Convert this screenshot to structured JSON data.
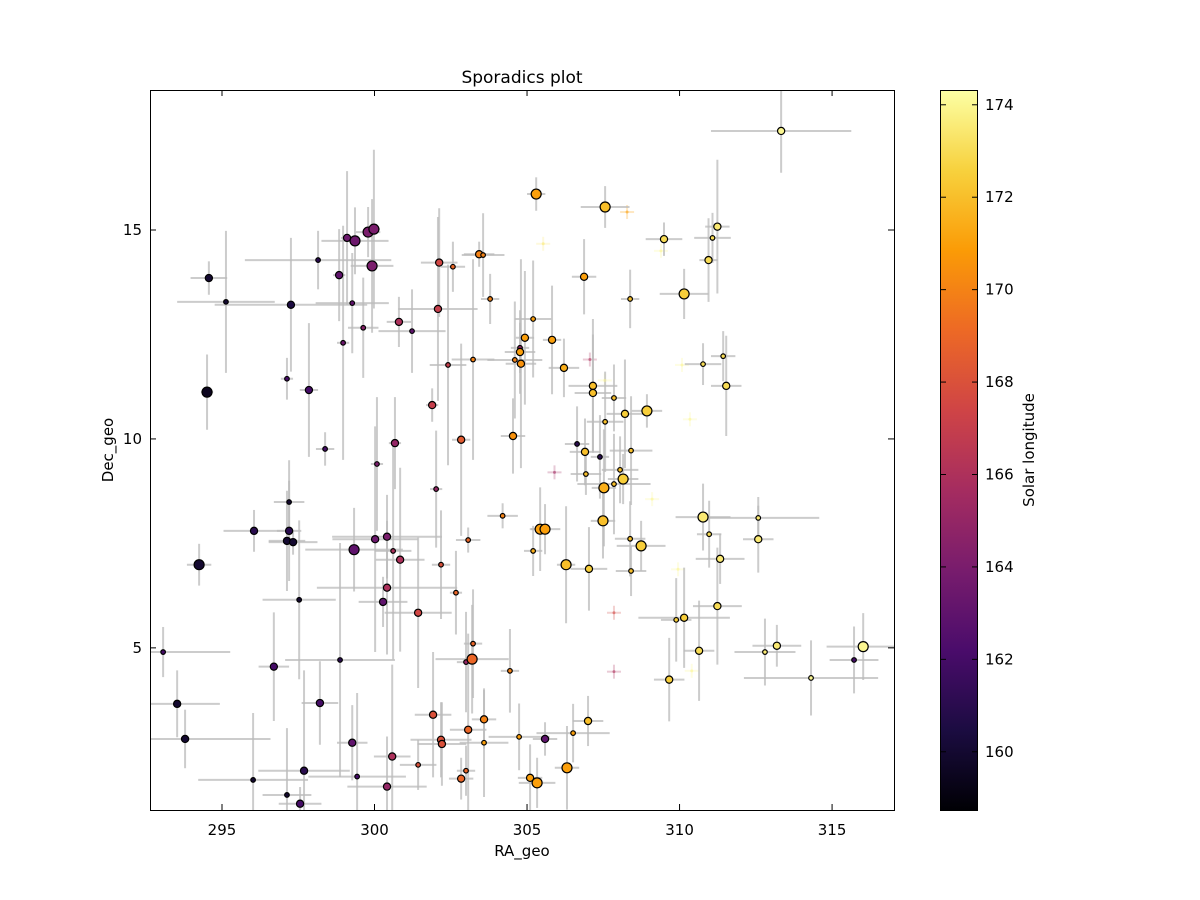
{
  "chart_data": {
    "type": "scatter",
    "title": "Sporadics plot",
    "xlabel": "RA_geo",
    "ylabel": "Dec_geo",
    "xlim": [
      292.64,
      317.03
    ],
    "ylim": [
      1.12,
      18.35
    ],
    "xticks": [
      295,
      300,
      305,
      310,
      315
    ],
    "yticks": [
      5,
      10,
      15
    ],
    "grid": false,
    "colorbar": {
      "label": "Solar longitude",
      "colormap": "inferno",
      "range": [
        158.74,
        174.32
      ],
      "ticks": [
        160,
        162,
        164,
        166,
        168,
        170,
        172,
        174
      ]
    },
    "errorbar_color": "#bbbbbb",
    "point_fields": [
      "ra",
      "dec",
      "solar_longitude",
      "size",
      "ra_err",
      "dec_err"
    ],
    "points": [
      [
        294.57,
        13.85,
        160,
        2,
        0.6,
        0.4
      ],
      [
        295.13,
        13.28,
        160,
        1,
        1.6,
        1.7
      ],
      [
        297.26,
        13.21,
        160.5,
        2,
        2.5,
        1.6
      ],
      [
        294.51,
        11.12,
        159.5,
        3,
        0.2,
        0.9
      ],
      [
        298.15,
        14.28,
        161,
        1,
        2.4,
        0.7
      ],
      [
        299.1,
        14.81,
        163.5,
        2,
        0.2,
        1.6
      ],
      [
        299.36,
        14.74,
        163.5,
        3,
        1.1,
        0.8
      ],
      [
        299.79,
        14.95,
        164,
        3,
        0.4,
        0.6
      ],
      [
        299.98,
        15.02,
        164,
        3,
        0.2,
        1.9
      ],
      [
        299.92,
        14.14,
        164,
        3,
        0.7,
        1.6
      ],
      [
        298.84,
        13.92,
        163,
        2,
        0.2,
        1.1
      ],
      [
        299.27,
        13.25,
        163,
        1,
        1.2,
        1.2
      ],
      [
        299.63,
        12.66,
        164.5,
        1,
        0.5,
        1.2
      ],
      [
        298.97,
        12.3,
        163.5,
        1,
        0.2,
        2.8
      ],
      [
        300.8,
        12.8,
        166,
        2,
        0.4,
        0.6
      ],
      [
        301.23,
        12.58,
        163,
        1,
        1.1,
        1.0
      ],
      [
        302.08,
        13.11,
        167,
        2,
        1.3,
        2.2
      ],
      [
        302.12,
        14.22,
        167.5,
        2,
        0.6,
        1.3
      ],
      [
        302.57,
        14.12,
        169,
        1,
        0.4,
        0.6
      ],
      [
        302.41,
        11.77,
        167,
        1,
        0.6,
        2.4
      ],
      [
        301.89,
        10.81,
        167,
        2,
        0.2,
        0.4
      ],
      [
        302.84,
        9.98,
        168.5,
        2,
        0.3,
        2.3
      ],
      [
        297.13,
        11.44,
        162,
        1,
        0.2,
        0.5
      ],
      [
        297.85,
        11.17,
        162,
        2,
        0.3,
        1.6
      ],
      [
        298.38,
        9.76,
        162,
        1,
        0.3,
        0.4
      ],
      [
        300.08,
        9.4,
        164,
        1,
        0.2,
        1.6
      ],
      [
        300.67,
        9.9,
        165,
        2,
        0.2,
        1.1
      ],
      [
        302.02,
        8.8,
        165,
        1,
        0.2,
        1.4
      ],
      [
        297.2,
        8.49,
        160,
        1,
        0.5,
        1.0
      ],
      [
        296.05,
        7.8,
        161,
        2,
        1.0,
        0.5
      ],
      [
        297.2,
        7.8,
        161,
        2,
        0.4,
        1.2
      ],
      [
        297.13,
        7.56,
        160,
        2,
        0.6,
        1.2
      ],
      [
        297.33,
        7.53,
        160,
        2,
        0.8,
        0.3
      ],
      [
        294.25,
        6.99,
        160,
        3,
        0.4,
        0.5
      ],
      [
        299.33,
        7.35,
        163,
        3,
        1.6,
        1.0
      ],
      [
        300.02,
        7.6,
        163.5,
        2,
        1.4,
        2.7
      ],
      [
        300.41,
        7.66,
        164,
        2,
        1.8,
        1.0
      ],
      [
        300.61,
        7.32,
        166,
        1,
        0.6,
        2.6
      ],
      [
        300.84,
        7.11,
        166,
        2,
        0.8,
        2.2
      ],
      [
        302.18,
        6.99,
        168,
        1,
        0.3,
        1.3
      ],
      [
        303.07,
        7.58,
        169,
        1,
        0.4,
        0.3
      ],
      [
        302.67,
        6.32,
        169,
        1,
        0.2,
        1.0
      ],
      [
        300.41,
        6.44,
        166,
        2,
        2.3,
        1.6
      ],
      [
        300.28,
        6.1,
        163,
        2,
        0.8,
        0.6
      ],
      [
        301.43,
        5.84,
        167.5,
        2,
        1.1,
        1.8
      ],
      [
        297.53,
        6.15,
        160,
        1,
        1.2,
        1.9
      ],
      [
        293.07,
        4.9,
        162,
        1,
        2.2,
        0.6
      ],
      [
        296.7,
        4.55,
        162,
        2,
        0.5,
        1.3
      ],
      [
        298.87,
        4.71,
        161,
        1,
        1.8,
        2.8
      ],
      [
        298.21,
        3.68,
        162,
        2,
        0.6,
        1.0
      ],
      [
        293.53,
        3.66,
        160,
        2,
        1.4,
        0.8
      ],
      [
        293.79,
        2.82,
        160,
        2,
        2.8,
        0.7
      ],
      [
        296.02,
        1.84,
        160,
        1,
        1.8,
        1.6
      ],
      [
        297.13,
        1.48,
        160,
        1,
        0.8,
        1.6
      ],
      [
        297.56,
        1.27,
        162,
        2,
        0.7,
        0.4
      ],
      [
        297.69,
        2.06,
        161,
        2,
        1.5,
        2.4
      ],
      [
        299.27,
        2.73,
        163,
        2,
        0.5,
        0.9
      ],
      [
        299.43,
        1.92,
        162,
        1,
        1.6,
        2.0
      ],
      [
        300.41,
        1.68,
        165,
        2,
        1.3,
        1.2
      ],
      [
        300.58,
        2.4,
        166,
        2,
        0.6,
        2.2
      ],
      [
        301.92,
        3.4,
        168,
        2,
        0.6,
        1.5
      ],
      [
        301.43,
        2.2,
        168,
        1,
        0.6,
        0.6
      ],
      [
        302.18,
        2.8,
        168,
        2,
        1.0,
        0.9
      ],
      [
        302.21,
        2.7,
        168,
        2,
        0.8,
        1.0
      ],
      [
        302.84,
        1.87,
        169,
        2,
        0.4,
        0.5
      ],
      [
        303.0,
        2.06,
        169,
        1,
        0.3,
        0.6
      ],
      [
        303.07,
        3.04,
        169,
        2,
        0.6,
        2.3
      ],
      [
        303.23,
        5.1,
        169,
        1,
        0.3,
        1.3
      ],
      [
        303.0,
        4.66,
        165,
        1,
        0.3,
        1.2
      ],
      [
        303.2,
        4.73,
        169,
        3,
        1.2,
        1.3
      ],
      [
        303.59,
        3.29,
        170,
        2,
        0.4,
        0.7
      ],
      [
        303.59,
        2.73,
        171,
        1,
        0.8,
        1.3
      ],
      [
        304.44,
        4.45,
        170,
        1,
        0.3,
        1.0
      ],
      [
        304.74,
        2.87,
        171,
        1,
        1.0,
        0.8
      ],
      [
        305.1,
        1.89,
        171,
        2,
        0.4,
        0.8
      ],
      [
        305.33,
        1.77,
        171,
        3,
        0.6,
        0.6
      ],
      [
        305.59,
        2.82,
        163,
        2,
        0.4,
        0.4
      ],
      [
        306.31,
        2.13,
        171,
        3,
        0.4,
        1.0
      ],
      [
        306.51,
        2.96,
        171,
        1,
        1.2,
        0.7
      ],
      [
        307.0,
        3.25,
        172,
        2,
        0.5,
        0.6
      ],
      [
        303.43,
        14.42,
        170,
        2,
        0.5,
        0.3
      ],
      [
        303.56,
        14.4,
        170,
        1,
        0.7,
        1.0
      ],
      [
        303.79,
        13.35,
        170,
        1,
        0.3,
        0.6
      ],
      [
        303.23,
        11.9,
        170,
        1,
        0.7,
        2.4
      ],
      [
        304.2,
        8.16,
        170,
        1,
        0.5,
        0.3
      ],
      [
        304.54,
        10.07,
        170.5,
        2,
        0.4,
        0.9
      ],
      [
        304.6,
        11.89,
        170,
        1,
        0.9,
        1.4
      ],
      [
        304.77,
        12.18,
        165,
        1,
        0.3,
        0.6
      ],
      [
        304.77,
        12.08,
        171,
        2,
        0.5,
        1.0
      ],
      [
        304.8,
        11.8,
        170.5,
        2,
        0.5,
        2.5
      ],
      [
        304.93,
        12.42,
        171,
        2,
        0.3,
        1.6
      ],
      [
        305.2,
        12.87,
        171,
        1,
        0.6,
        1.4
      ],
      [
        305.3,
        15.86,
        171,
        3,
        0.3,
        0.4
      ],
      [
        305.82,
        12.37,
        171,
        2,
        0.3,
        1.3
      ],
      [
        306.21,
        11.7,
        171.5,
        2,
        0.5,
        0.7
      ],
      [
        305.2,
        7.32,
        171.5,
        1,
        0.3,
        0.6
      ],
      [
        305.43,
        7.84,
        171,
        3,
        0.3,
        1.0
      ],
      [
        305.59,
        7.84,
        171,
        3,
        0.5,
        0.6
      ],
      [
        306.28,
        6.99,
        172,
        3,
        0.3,
        1.4
      ],
      [
        306.87,
        13.88,
        171,
        2,
        0.4,
        0.9
      ],
      [
        307.56,
        15.55,
        172,
        3,
        0.8,
        0.5
      ],
      [
        308.38,
        13.35,
        172,
        1,
        0.3,
        0.7
      ],
      [
        307.16,
        11.27,
        172,
        2,
        0.8,
        1.6
      ],
      [
        307.16,
        11.1,
        172,
        2,
        0.6,
        1.4
      ],
      [
        307.85,
        10.98,
        172,
        1,
        0.4,
        0.8
      ],
      [
        308.21,
        10.6,
        172.5,
        2,
        0.6,
        1.3
      ],
      [
        308.93,
        10.67,
        172.5,
        3,
        0.5,
        0.4
      ],
      [
        307.56,
        10.41,
        172,
        1,
        0.6,
        1.2
      ],
      [
        306.64,
        9.88,
        161,
        1,
        0.4,
        0.9
      ],
      [
        306.9,
        9.69,
        172,
        2,
        0.5,
        0.8
      ],
      [
        307.39,
        9.57,
        161,
        1,
        0.3,
        1.0
      ],
      [
        308.41,
        9.72,
        172,
        1,
        0.7,
        1.3
      ],
      [
        306.93,
        9.16,
        172,
        1,
        0.5,
        0.5
      ],
      [
        308.05,
        9.26,
        172,
        1,
        0.6,
        0.8
      ],
      [
        308.15,
        9.04,
        172.5,
        3,
        0.5,
        0.6
      ],
      [
        307.85,
        8.92,
        172,
        1,
        1.2,
        1.2
      ],
      [
        307.52,
        8.83,
        171.5,
        3,
        0.4,
        1.4
      ],
      [
        307.49,
        8.04,
        172,
        3,
        0.4,
        0.9
      ],
      [
        308.38,
        7.61,
        172,
        1,
        0.5,
        0.9
      ],
      [
        308.74,
        7.44,
        172.5,
        3,
        0.8,
        0.6
      ],
      [
        308.41,
        6.84,
        172,
        1,
        0.5,
        0.6
      ],
      [
        307.03,
        6.89,
        172.5,
        2,
        0.6,
        1.0
      ],
      [
        309.49,
        14.78,
        173,
        2,
        0.6,
        0.4
      ],
      [
        310.15,
        13.47,
        172.5,
        3,
        0.8,
        0.6
      ],
      [
        310.95,
        14.28,
        173,
        2,
        0.3,
        1.0
      ],
      [
        311.08,
        14.81,
        173,
        1,
        0.6,
        0.6
      ],
      [
        311.24,
        15.08,
        173.5,
        2,
        0.4,
        1.6
      ],
      [
        310.77,
        11.79,
        173,
        1,
        0.6,
        0.5
      ],
      [
        311.43,
        11.98,
        173,
        1,
        0.4,
        0.6
      ],
      [
        311.53,
        11.27,
        173,
        2,
        0.5,
        1.2
      ],
      [
        310.77,
        8.13,
        173.5,
        3,
        0.9,
        0.8
      ],
      [
        310.97,
        7.72,
        173,
        1,
        0.4,
        0.8
      ],
      [
        311.33,
        7.13,
        173.5,
        2,
        0.8,
        0.6
      ],
      [
        312.58,
        8.11,
        173.5,
        1,
        2.0,
        0.5
      ],
      [
        312.58,
        7.6,
        173.5,
        2,
        0.5,
        0.8
      ],
      [
        311.24,
        6.0,
        173,
        2,
        0.8,
        1.4
      ],
      [
        309.89,
        5.67,
        172.5,
        1,
        0.5,
        1.0
      ],
      [
        310.15,
        5.72,
        172.5,
        2,
        1.5,
        1.2
      ],
      [
        310.64,
        4.93,
        173,
        2,
        0.5,
        1.2
      ],
      [
        309.66,
        4.24,
        172.5,
        2,
        0.5,
        1.0
      ],
      [
        313.19,
        5.05,
        173.5,
        2,
        0.8,
        0.5
      ],
      [
        312.8,
        4.9,
        173.5,
        1,
        1.0,
        0.8
      ],
      [
        314.31,
        4.28,
        174,
        1,
        2.2,
        0.9
      ],
      [
        315.72,
        4.71,
        162,
        1,
        0.8,
        0.8
      ],
      [
        316.02,
        5.03,
        174,
        3,
        1.2,
        0.8
      ],
      [
        313.33,
        17.37,
        174,
        2,
        2.3,
        1.0
      ]
    ],
    "faint_points": [
      [
        305.53,
        14.67,
        173.5
      ],
      [
        305.9,
        9.2,
        165.5
      ],
      [
        307.85,
        5.84,
        167.5
      ],
      [
        307.85,
        4.43,
        166
      ],
      [
        310.34,
        10.47,
        174
      ],
      [
        310.08,
        11.77,
        174
      ],
      [
        309.39,
        14.5,
        174
      ],
      [
        308.28,
        15.43,
        171
      ],
      [
        307.06,
        11.9,
        166
      ],
      [
        307.55,
        11.4,
        174
      ],
      [
        309.1,
        8.56,
        174
      ],
      [
        310.4,
        4.45,
        174
      ],
      [
        309.95,
        6.88,
        174
      ]
    ]
  }
}
